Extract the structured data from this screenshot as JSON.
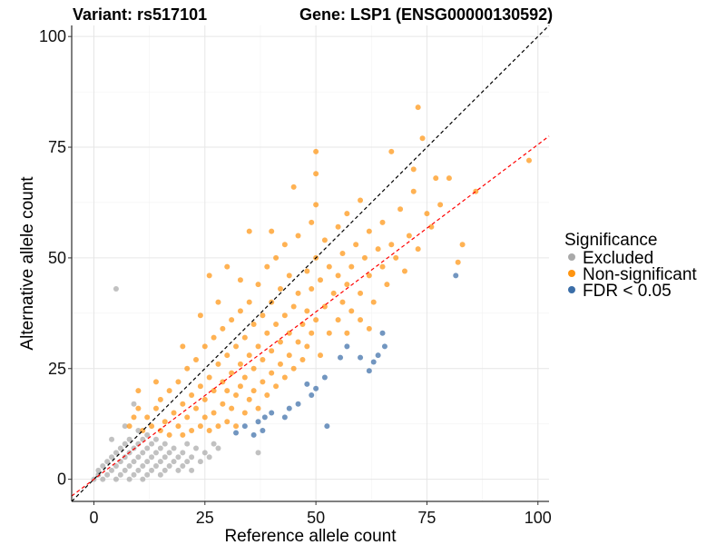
{
  "chart_data": {
    "type": "scatter",
    "title_left": "Variant: rs517101",
    "title_right": "Gene: LSP1 (ENSG00000130592)",
    "xlabel": "Reference allele count",
    "ylabel": "Alternative allele count",
    "xlim": [
      -5,
      102.5
    ],
    "ylim": [
      -5,
      102.5
    ],
    "xticks": [
      "0",
      "25",
      "50",
      "75",
      "100"
    ],
    "yticks": [
      "0",
      "25",
      "50",
      "75",
      "100"
    ],
    "tick_values": [
      0,
      25,
      50,
      75,
      100
    ],
    "grid": true,
    "legend": {
      "title": "Significance",
      "placement": "right",
      "entries": [
        "Excluded",
        "Non-significant",
        "FDR < 0.05"
      ]
    },
    "colors": {
      "Excluded": "#a9a9a9",
      "Non-significant": "#ff9410",
      "FDR < 0.05": "#3b6ea8",
      "identity_line": "#000000",
      "fit_line": "#ff0000"
    },
    "reference_lines": [
      {
        "name": "identity",
        "slope": 1,
        "intercept": 0,
        "style": "dashed",
        "color": "#000000"
      },
      {
        "name": "fit",
        "slope": 0.756,
        "intercept": 0,
        "style": "dashed",
        "color": "#ff0000"
      }
    ],
    "series": [
      {
        "name": "Excluded",
        "points": [
          [
            0,
            0
          ],
          [
            1,
            1
          ],
          [
            1,
            2
          ],
          [
            2,
            0
          ],
          [
            2,
            3
          ],
          [
            3,
            1
          ],
          [
            3,
            4
          ],
          [
            4,
            2
          ],
          [
            4,
            5
          ],
          [
            5,
            0
          ],
          [
            5,
            3
          ],
          [
            5,
            6
          ],
          [
            6,
            1
          ],
          [
            6,
            4
          ],
          [
            6,
            7
          ],
          [
            7,
            2
          ],
          [
            7,
            5
          ],
          [
            7,
            8
          ],
          [
            8,
            0
          ],
          [
            8,
            3
          ],
          [
            8,
            6
          ],
          [
            8,
            9
          ],
          [
            9,
            1
          ],
          [
            9,
            4
          ],
          [
            9,
            7
          ],
          [
            10,
            2
          ],
          [
            10,
            5
          ],
          [
            10,
            8
          ],
          [
            10,
            11
          ],
          [
            11,
            0
          ],
          [
            11,
            3
          ],
          [
            11,
            6
          ],
          [
            11,
            9
          ],
          [
            12,
            1
          ],
          [
            12,
            4
          ],
          [
            12,
            7
          ],
          [
            12,
            10
          ],
          [
            13,
            2
          ],
          [
            13,
            5
          ],
          [
            13,
            8
          ],
          [
            14,
            3
          ],
          [
            14,
            6
          ],
          [
            14,
            9
          ],
          [
            15,
            1
          ],
          [
            15,
            4
          ],
          [
            15,
            7
          ],
          [
            16,
            2
          ],
          [
            16,
            5
          ],
          [
            16,
            8
          ],
          [
            17,
            3
          ],
          [
            17,
            6
          ],
          [
            18,
            4
          ],
          [
            18,
            7
          ],
          [
            19,
            2
          ],
          [
            19,
            5
          ],
          [
            20,
            3
          ],
          [
            20,
            6
          ],
          [
            21,
            4
          ],
          [
            21,
            8
          ],
          [
            22,
            2
          ],
          [
            22,
            5
          ],
          [
            23,
            7
          ],
          [
            24,
            4
          ],
          [
            25,
            6
          ],
          [
            26,
            5
          ],
          [
            27,
            8
          ],
          [
            28,
            7
          ],
          [
            5,
            43
          ],
          [
            37,
            6
          ],
          [
            9,
            17
          ],
          [
            7,
            12
          ],
          [
            4,
            9
          ]
        ]
      },
      {
        "name": "Non-significant",
        "points": [
          [
            12,
            14
          ],
          [
            13,
            12
          ],
          [
            14,
            16
          ],
          [
            15,
            11
          ],
          [
            15,
            18
          ],
          [
            16,
            13
          ],
          [
            17,
            20
          ],
          [
            17,
            10
          ],
          [
            18,
            15
          ],
          [
            19,
            12
          ],
          [
            19,
            22
          ],
          [
            20,
            17
          ],
          [
            20,
            10
          ],
          [
            21,
            25
          ],
          [
            21,
            14
          ],
          [
            22,
            19
          ],
          [
            22,
            11
          ],
          [
            23,
            27
          ],
          [
            23,
            16
          ],
          [
            24,
            21
          ],
          [
            24,
            12
          ],
          [
            25,
            30
          ],
          [
            25,
            18
          ],
          [
            25,
            14
          ],
          [
            26,
            23
          ],
          [
            26,
            11
          ],
          [
            27,
            32
          ],
          [
            27,
            20
          ],
          [
            27,
            15
          ],
          [
            28,
            26
          ],
          [
            28,
            12
          ],
          [
            29,
            34
          ],
          [
            29,
            22
          ],
          [
            29,
            17
          ],
          [
            30,
            28
          ],
          [
            30,
            13
          ],
          [
            30,
            20
          ],
          [
            31,
            36
          ],
          [
            31,
            24
          ],
          [
            31,
            16
          ],
          [
            32,
            30
          ],
          [
            32,
            19
          ],
          [
            32,
            12
          ],
          [
            33,
            38
          ],
          [
            33,
            26
          ],
          [
            33,
            21
          ],
          [
            34,
            32
          ],
          [
            34,
            15
          ],
          [
            34,
            23
          ],
          [
            35,
            40
          ],
          [
            35,
            28
          ],
          [
            35,
            18
          ],
          [
            36,
            35
          ],
          [
            36,
            25
          ],
          [
            36,
            20
          ],
          [
            37,
            44
          ],
          [
            37,
            30
          ],
          [
            37,
            16
          ],
          [
            38,
            37
          ],
          [
            38,
            27
          ],
          [
            38,
            22
          ],
          [
            39,
            48
          ],
          [
            39,
            33
          ],
          [
            39,
            19
          ],
          [
            40,
            40
          ],
          [
            40,
            29
          ],
          [
            40,
            24
          ],
          [
            41,
            50
          ],
          [
            41,
            35
          ],
          [
            41,
            21
          ],
          [
            42,
            43
          ],
          [
            42,
            31
          ],
          [
            42,
            26
          ],
          [
            43,
            53
          ],
          [
            43,
            37
          ],
          [
            43,
            23
          ],
          [
            44,
            46
          ],
          [
            44,
            33
          ],
          [
            44,
            28
          ],
          [
            45,
            39
          ],
          [
            45,
            25
          ],
          [
            46,
            55
          ],
          [
            46,
            42
          ],
          [
            46,
            31
          ],
          [
            47,
            35
          ],
          [
            47,
            27
          ],
          [
            48,
            47
          ],
          [
            48,
            38
          ],
          [
            48,
            30
          ],
          [
            49,
            58
          ],
          [
            49,
            43
          ],
          [
            49,
            33
          ],
          [
            50,
            74
          ],
          [
            50,
            69
          ],
          [
            50,
            62
          ],
          [
            50,
            50
          ],
          [
            50,
            36
          ],
          [
            51,
            45
          ],
          [
            51,
            28
          ],
          [
            52,
            54
          ],
          [
            52,
            39
          ],
          [
            53,
            48
          ],
          [
            53,
            33
          ],
          [
            54,
            42
          ],
          [
            55,
            57
          ],
          [
            55,
            46
          ],
          [
            55,
            36
          ],
          [
            56,
            51
          ],
          [
            56,
            40
          ],
          [
            57,
            60
          ],
          [
            57,
            44
          ],
          [
            58,
            48
          ],
          [
            58,
            38
          ],
          [
            59,
            53
          ],
          [
            60,
            42
          ],
          [
            60,
            63
          ],
          [
            61,
            50
          ],
          [
            62,
            46
          ],
          [
            62,
            56
          ],
          [
            63,
            40
          ],
          [
            64,
            52
          ],
          [
            65,
            58
          ],
          [
            65,
            48
          ],
          [
            66,
            44
          ],
          [
            67,
            74
          ],
          [
            67,
            53
          ],
          [
            68,
            50
          ],
          [
            69,
            61
          ],
          [
            70,
            47
          ],
          [
            71,
            55
          ],
          [
            72,
            70
          ],
          [
            72,
            65
          ],
          [
            73,
            84
          ],
          [
            73,
            52
          ],
          [
            74,
            77
          ],
          [
            75,
            60
          ],
          [
            76,
            57
          ],
          [
            77,
            68
          ],
          [
            78,
            62
          ],
          [
            80,
            68
          ],
          [
            82,
            49
          ],
          [
            83,
            53
          ],
          [
            86,
            65
          ],
          [
            98,
            72
          ],
          [
            8,
            12
          ],
          [
            9,
            14
          ],
          [
            10,
            16
          ],
          [
            11,
            11
          ],
          [
            10,
            20
          ],
          [
            14,
            22
          ],
          [
            26,
            46
          ],
          [
            30,
            48
          ],
          [
            35,
            56
          ],
          [
            40,
            56
          ],
          [
            45,
            66
          ],
          [
            33,
            45
          ],
          [
            28,
            40
          ],
          [
            24,
            37
          ],
          [
            20,
            30
          ],
          [
            57,
            33
          ],
          [
            60,
            36
          ],
          [
            62,
            34
          ]
        ]
      },
      {
        "name": "FDR < 0.05",
        "points": [
          [
            81.5,
            46
          ],
          [
            65,
            33
          ],
          [
            65.5,
            30
          ],
          [
            64,
            28
          ],
          [
            62,
            24.5
          ],
          [
            60,
            27.5
          ],
          [
            63,
            26.5
          ],
          [
            57,
            30
          ],
          [
            55.5,
            27.5
          ],
          [
            52,
            23
          ],
          [
            50,
            20.5
          ],
          [
            49,
            19
          ],
          [
            48,
            21.5
          ],
          [
            46,
            17
          ],
          [
            44,
            16
          ],
          [
            43,
            14
          ],
          [
            40,
            15
          ],
          [
            38.5,
            14
          ],
          [
            37,
            13
          ],
          [
            34,
            12
          ],
          [
            32,
            10.5
          ],
          [
            52.5,
            12
          ],
          [
            36,
            10
          ],
          [
            38,
            11
          ]
        ]
      }
    ]
  }
}
